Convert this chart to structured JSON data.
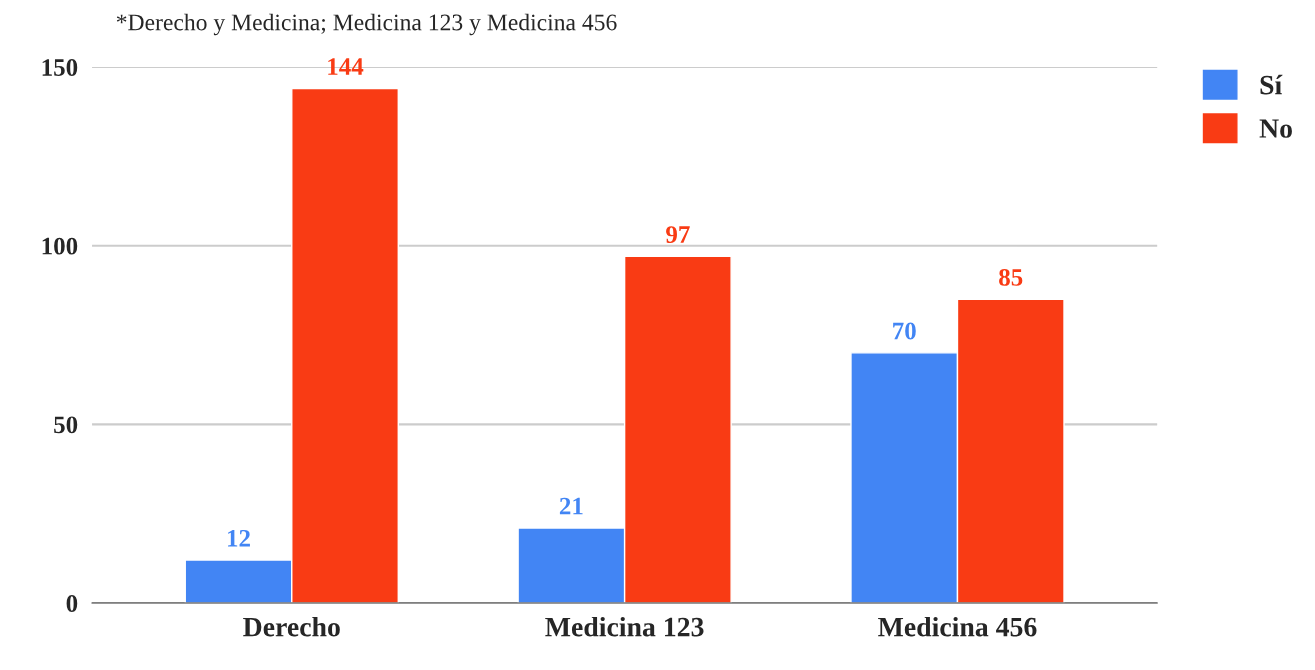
{
  "chart_data": {
    "type": "bar",
    "annotations": [
      "*Derecho y Medicina; Medicina 123 y Medicina 456"
    ],
    "categories": [
      "Derecho",
      "Medicina 123",
      "Medicina 456"
    ],
    "series": [
      {
        "name": "Sí",
        "color": "#4285f4",
        "values": [
          12,
          21,
          70
        ]
      },
      {
        "name": "No",
        "color": "#f93b14",
        "values": [
          144,
          97,
          85
        ]
      }
    ],
    "ylim": [
      0,
      150
    ],
    "yticks": [
      0,
      50,
      100,
      150
    ],
    "grid": "y",
    "legend": "top right",
    "data_labels": true
  }
}
